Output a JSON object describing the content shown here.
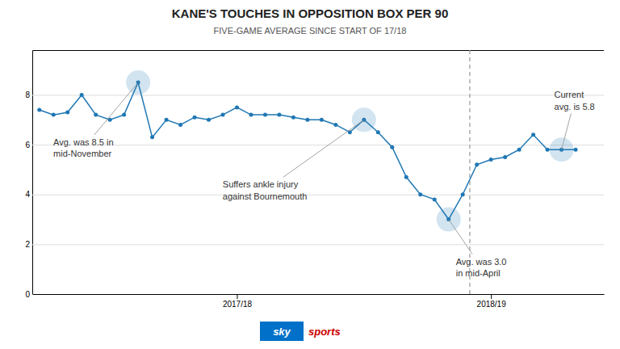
{
  "chart_data": {
    "type": "line",
    "title": "KANE'S TOUCHES IN OPPOSITION BOX PER 90",
    "subtitle": "FIVE-GAME AVERAGE SINCE START OF 17/18",
    "x": [
      0,
      1,
      2,
      3,
      4,
      5,
      6,
      7,
      8,
      9,
      10,
      11,
      12,
      13,
      14,
      15,
      16,
      17,
      18,
      19,
      20,
      21,
      22,
      23,
      24,
      25,
      26,
      27,
      28,
      29,
      30,
      31,
      32,
      33,
      34,
      35,
      36,
      37,
      38
    ],
    "values": [
      7.4,
      7.2,
      7.3,
      8.0,
      7.2,
      7.0,
      7.2,
      8.5,
      6.3,
      7.0,
      6.8,
      7.1,
      7.0,
      7.2,
      7.5,
      7.2,
      7.2,
      7.2,
      7.1,
      7.0,
      7.0,
      6.8,
      6.5,
      7.0,
      6.5,
      5.9,
      4.7,
      4.0,
      3.8,
      3.0,
      4.0,
      5.2,
      5.4,
      5.5,
      5.8,
      6.4,
      5.8,
      5.8,
      5.8
    ],
    "divider_x": 30.5,
    "annotations": [
      {
        "text": "Avg. was 8.5 in\nmid-November",
        "x": 7,
        "y": 8.5
      },
      {
        "text": "Suffers ankle injury\nagainst Bournemouth",
        "x": 23,
        "y": 7.0
      },
      {
        "text": "Avg. was 3.0\nin mid-April",
        "x": 29,
        "y": 3.0
      },
      {
        "text": "Current\navg. is 5.8",
        "x": 37,
        "y": 5.8
      }
    ],
    "xlim": [
      -0.5,
      40
    ],
    "xticks": [
      {
        "value": 14,
        "label": "2017/18"
      },
      {
        "value": 32,
        "label": "2018/19"
      }
    ],
    "ylim": [
      0,
      9.8
    ],
    "yticks": [
      0,
      2,
      4,
      6,
      8
    ],
    "grid": true,
    "logo": [
      {
        "text": "sky",
        "color": "#0070c8"
      },
      {
        "text": "sports",
        "color": "#cc0000"
      }
    ]
  }
}
